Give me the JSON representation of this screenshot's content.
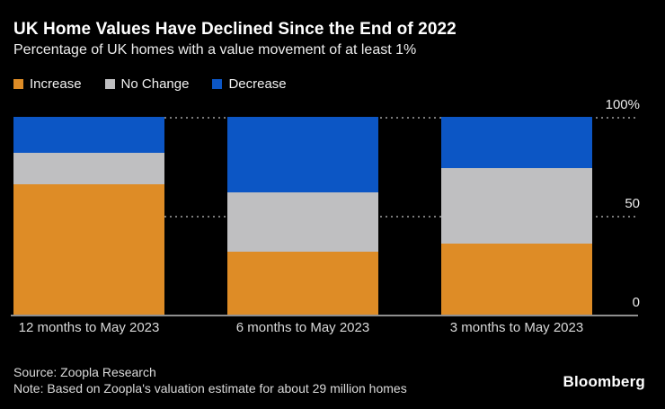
{
  "chart_data": {
    "type": "bar",
    "stacked": true,
    "title": "UK Home Values Have Declined Since the End of 2022",
    "subtitle": "Percentage of UK homes with a value movement of at least 1%",
    "categories": [
      "12 months to May 2023",
      "6 months to May 2023",
      "3 months to May 2023"
    ],
    "series": [
      {
        "name": "Increase",
        "color": "#DE8C26",
        "values": [
          66,
          32,
          36
        ]
      },
      {
        "name": "No Change",
        "color": "#BFBFC1",
        "values": [
          16,
          30,
          38
        ]
      },
      {
        "name": "Decrease",
        "color": "#0C56C5",
        "values": [
          18,
          38,
          26
        ]
      }
    ],
    "ylim": [
      0,
      100
    ],
    "yticks": [
      {
        "value": 100,
        "label": "100%"
      },
      {
        "value": 50,
        "label": "50"
      },
      {
        "value": 0,
        "label": "0"
      }
    ],
    "legend_position": "top-left",
    "grid": "horizontal-dotted",
    "background_color": "#000000"
  },
  "footer": {
    "source": "Source: Zoopla Research",
    "note": "Note: Based on Zoopla's valuation estimate for about 29 million homes",
    "brand": "Bloomberg"
  }
}
